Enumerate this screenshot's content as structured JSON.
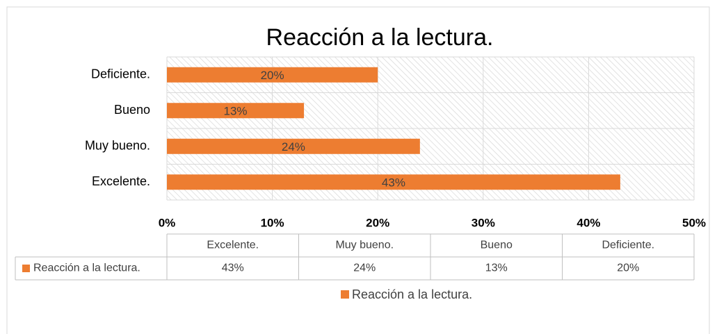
{
  "chart_data": {
    "type": "bar",
    "orientation": "horizontal",
    "title": "Reacción a la lectura.",
    "categories": [
      "Excelente.",
      "Muy bueno.",
      "Bueno",
      "Deficiente."
    ],
    "series": [
      {
        "name": "Reacción a la lectura.",
        "color": "#ed7d31",
        "values": [
          43,
          24,
          13,
          20
        ],
        "value_labels": [
          "43%",
          "24%",
          "13%",
          "20%"
        ]
      }
    ],
    "xlim": [
      0,
      50
    ],
    "xticks": [
      {
        "value": 0,
        "label": "0%"
      },
      {
        "value": 10,
        "label": "10%"
      },
      {
        "value": 20,
        "label": "20%"
      },
      {
        "value": 30,
        "label": "30%"
      },
      {
        "value": 40,
        "label": "40%"
      },
      {
        "value": 50,
        "label": "50%"
      }
    ],
    "grid": true,
    "data_table": true,
    "legend": "bottom"
  }
}
